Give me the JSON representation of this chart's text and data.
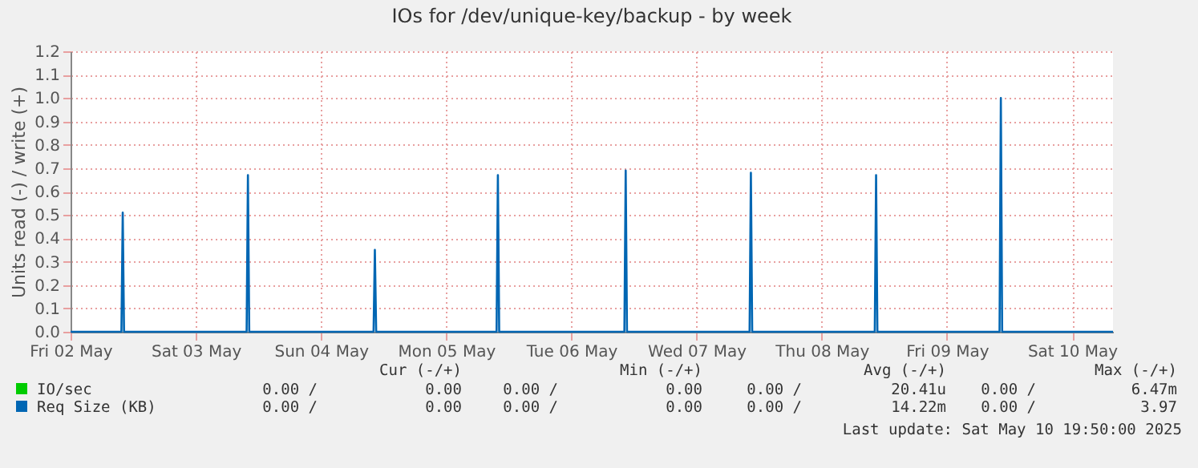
{
  "chart_data": {
    "type": "line",
    "title": "IOs for /dev/unique-key/backup - by week",
    "ylabel": "Units read (-) / write (+)",
    "xlim": [
      "2025-05-02T12:00",
      "2025-05-10T19:50"
    ],
    "xticks": [
      {
        "value": "2025-05-02T12:00",
        "label": "Fri 02 May"
      },
      {
        "value": "2025-05-03T12:00",
        "label": "Sat 03 May"
      },
      {
        "value": "2025-05-04T12:00",
        "label": "Sun 04 May"
      },
      {
        "value": "2025-05-05T12:00",
        "label": "Mon 05 May"
      },
      {
        "value": "2025-05-06T12:00",
        "label": "Tue 06 May"
      },
      {
        "value": "2025-05-07T12:00",
        "label": "Wed 07 May"
      },
      {
        "value": "2025-05-08T12:00",
        "label": "Thu 08 May"
      },
      {
        "value": "2025-05-09T12:00",
        "label": "Fri 09 May"
      },
      {
        "value": "2025-05-10T12:00",
        "label": "Sat 10 May"
      }
    ],
    "ylim": [
      0,
      1.2
    ],
    "yticks": [
      {
        "value": 0,
        "label": "0.0"
      },
      0.1,
      0.2,
      0.3,
      0.4,
      0.5,
      0.6,
      0.7,
      0.8,
      0.9,
      {
        "value": 1,
        "label": "1.0"
      },
      1.1,
      1.2
    ],
    "grid": true,
    "legend": "bottom",
    "marker": "none",
    "line_style": "solid",
    "series": [
      {
        "name": "Req Size (KB)",
        "color": "#0066b3",
        "x": [
          "2025-05-02T12:00",
          "2025-05-02T21:45",
          "2025-05-02T22:00",
          "2025-05-02T22:15",
          "2025-05-03T21:45",
          "2025-05-03T22:00",
          "2025-05-03T22:15",
          "2025-05-04T22:05",
          "2025-05-04T22:20",
          "2025-05-04T22:35",
          "2025-05-05T21:40",
          "2025-05-05T21:55",
          "2025-05-05T22:10",
          "2025-05-06T22:10",
          "2025-05-06T22:25",
          "2025-05-06T22:40",
          "2025-05-07T22:10",
          "2025-05-07T22:25",
          "2025-05-07T22:40",
          "2025-05-08T22:10",
          "2025-05-08T22:25",
          "2025-05-08T22:40",
          "2025-05-09T22:05",
          "2025-05-09T22:20",
          "2025-05-09T22:35",
          "2025-05-10T19:50"
        ],
        "values": [
          0,
          0,
          0.51,
          0,
          0,
          0.67,
          0,
          0,
          0.35,
          0,
          0,
          0.67,
          0,
          0,
          0.69,
          0,
          0,
          0.68,
          0,
          0,
          0.67,
          0,
          0,
          1.0,
          0,
          0
        ]
      },
      {
        "name": "IO/sec",
        "color": "#00cc00"
      }
    ],
    "annotations": [
      "Cur (-/+)",
      "Min (-/+)",
      "Avg (-/+)",
      "Max (-/+)",
      "0.00 /",
      "0.00",
      "0.00 /",
      "0.00",
      "0.00 /",
      "20.41u",
      "0.00 /",
      "6.47m",
      "0.00 /",
      "0.00",
      "0.00 /",
      "0.00",
      "0.00 /",
      "14.22m",
      "0.00 /",
      "3.97",
      "Last update: Sat May 10 19:50:00 2025"
    ]
  }
}
